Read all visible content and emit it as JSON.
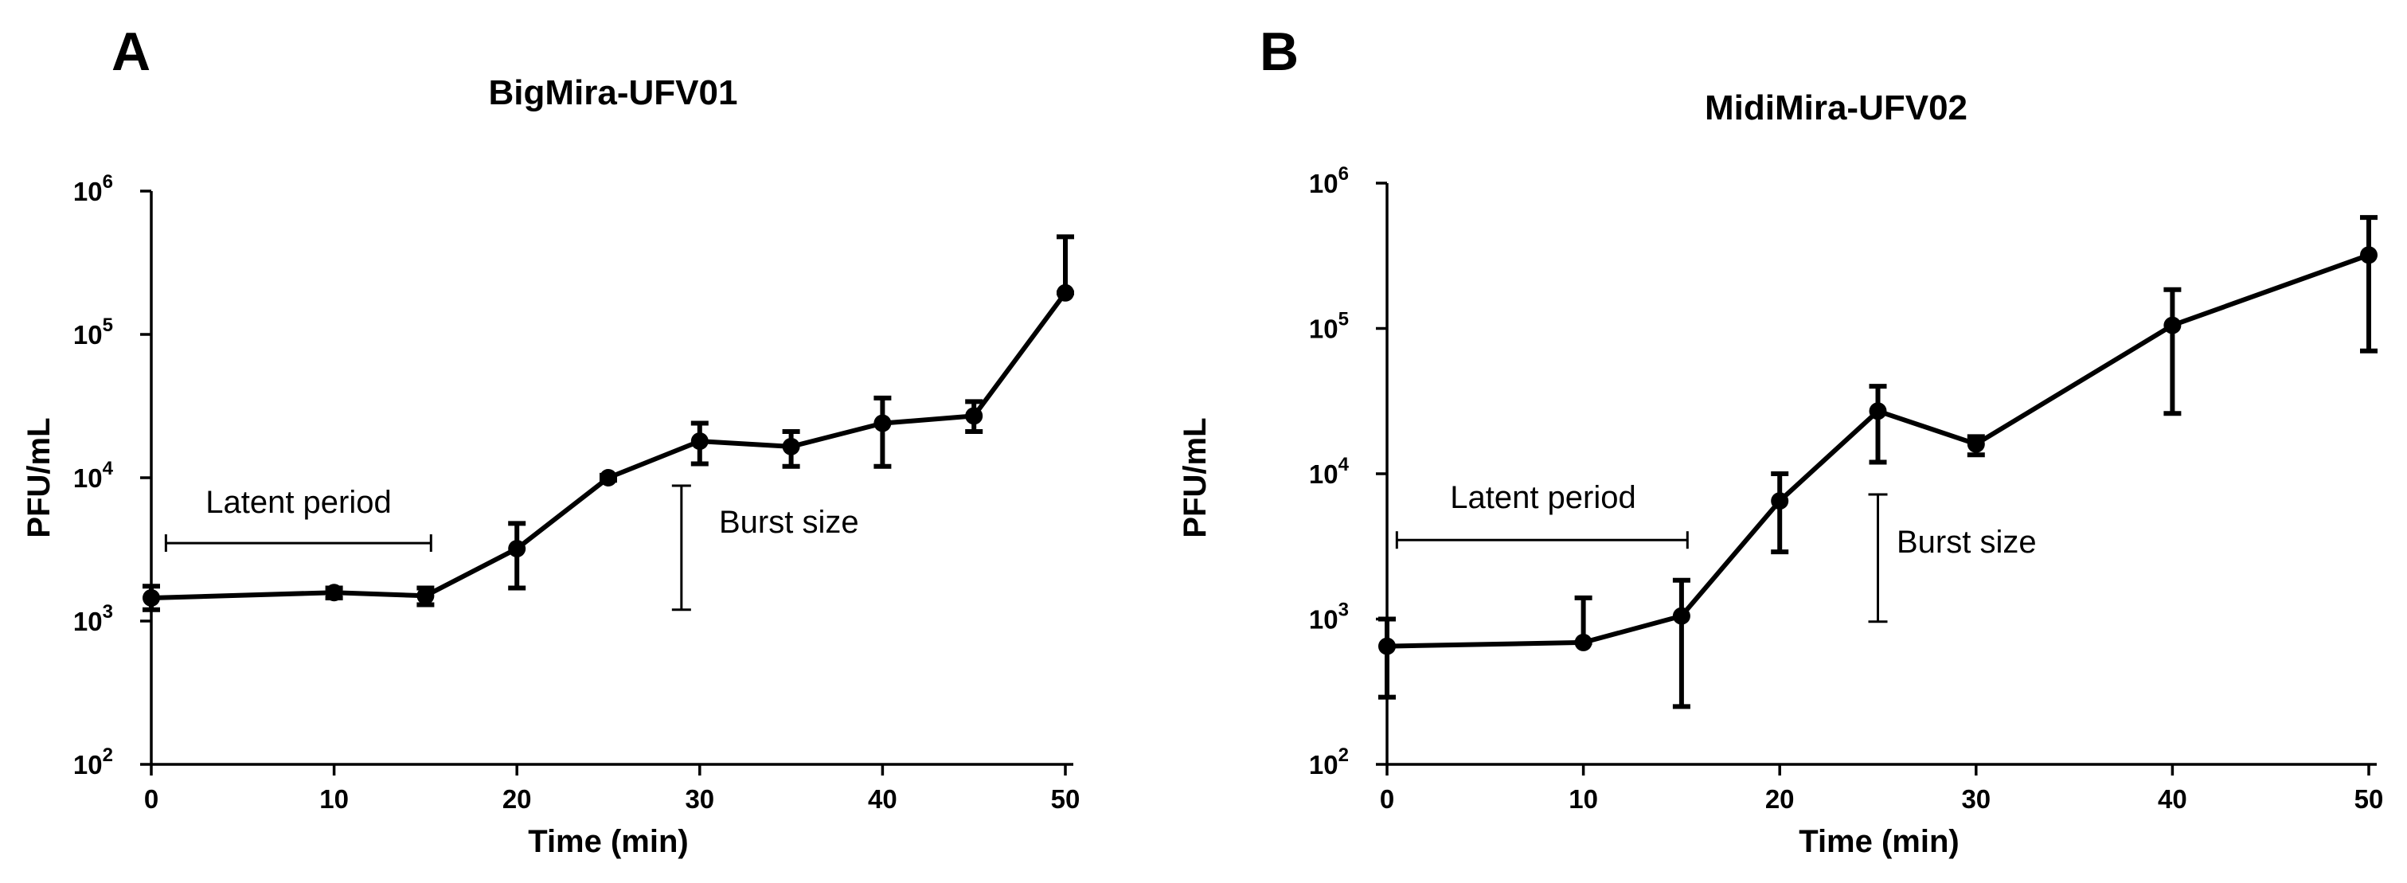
{
  "chart_data": [
    {
      "type": "line",
      "panel": "A",
      "title": "BigMira-UFV01",
      "xlabel": "Time (min)",
      "ylabel": "PFU/mL",
      "yscale": "log",
      "xlim": [
        0,
        50
      ],
      "ylim": [
        100,
        1000000
      ],
      "xticks": [
        "0",
        "10",
        "20",
        "30",
        "40",
        "50"
      ],
      "yticks": [
        {
          "base": "10",
          "exp": "2"
        },
        {
          "base": "10",
          "exp": "3"
        },
        {
          "base": "10",
          "exp": "4"
        },
        {
          "base": "10",
          "exp": "5"
        },
        {
          "base": "10",
          "exp": "6"
        }
      ],
      "series": [
        {
          "name": "BigMira-UFV01",
          "x": [
            0,
            10,
            15,
            20,
            25,
            30,
            35,
            40,
            45,
            50
          ],
          "y": [
            1450,
            1580,
            1500,
            3200,
            10000,
            18000,
            16500,
            24000,
            27000,
            195000
          ],
          "err_low": [
            1200,
            1450,
            1300,
            1700,
            9600,
            12500,
            12000,
            12000,
            21000,
            195000
          ],
          "err_high": [
            1750,
            1700,
            1700,
            4800,
            10400,
            24000,
            21000,
            36000,
            34000,
            480000
          ]
        }
      ],
      "annotations": {
        "latent": {
          "label": "Latent period",
          "x_start": 0.8,
          "x_end": 15.3,
          "y": 3500
        },
        "burst": {
          "label": "Burst size",
          "x": 29,
          "y_low": 1200,
          "y_high": 8800
        }
      }
    },
    {
      "type": "line",
      "panel": "B",
      "title": "MidiMira-UFV02",
      "xlabel": "Time (min)",
      "ylabel": "PFU/mL",
      "yscale": "log",
      "xlim": [
        0,
        50
      ],
      "ylim": [
        100,
        1000000
      ],
      "xticks": [
        "0",
        "10",
        "20",
        "30",
        "40",
        "50"
      ],
      "yticks": [
        {
          "base": "10",
          "exp": "2"
        },
        {
          "base": "10",
          "exp": "3"
        },
        {
          "base": "10",
          "exp": "4"
        },
        {
          "base": "10",
          "exp": "5"
        },
        {
          "base": "10",
          "exp": "6"
        }
      ],
      "series": [
        {
          "name": "MidiMira-UFV02",
          "x": [
            0,
            10,
            15,
            20,
            25,
            30,
            40,
            50
          ],
          "y": [
            650,
            690,
            1050,
            6500,
            27000,
            16000,
            105000,
            320000
          ],
          "err_low": [
            290,
            690,
            250,
            2900,
            12000,
            13500,
            26000,
            70000
          ],
          "err_high": [
            1000,
            1400,
            1850,
            10000,
            40000,
            18000,
            185000,
            580000
          ]
        }
      ],
      "annotations": {
        "latent": {
          "label": "Latent period",
          "x_start": 0.5,
          "x_end": 15.3,
          "y": 3500
        },
        "burst": {
          "label": "Burst size",
          "x": 25,
          "y_low": 960,
          "y_high": 7200
        }
      }
    }
  ]
}
